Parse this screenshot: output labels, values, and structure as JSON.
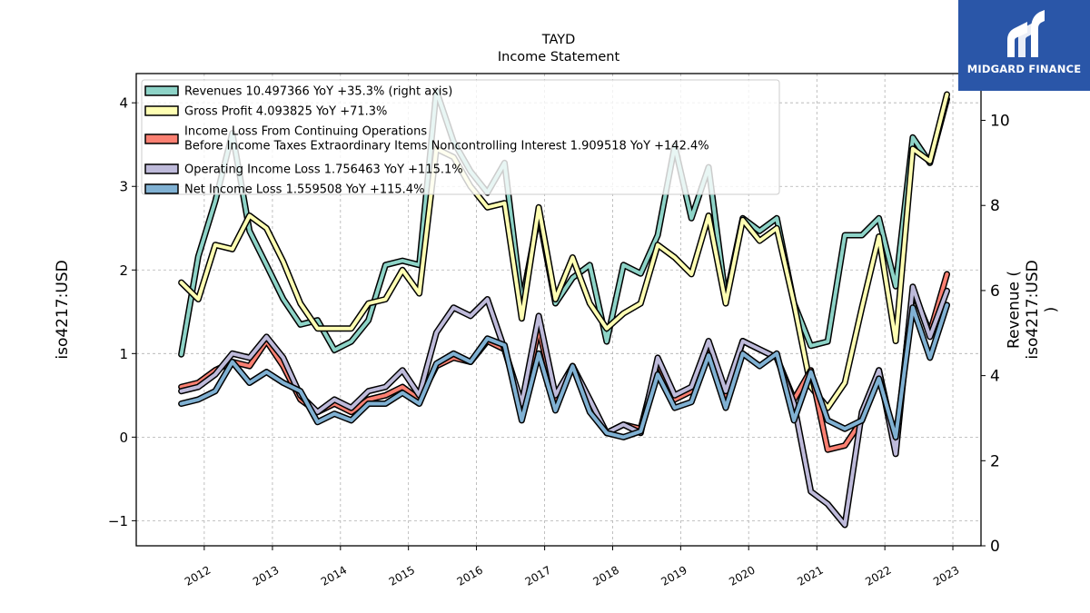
{
  "brand": {
    "name": "MIDGARD FINANCE",
    "bg_color": "#2a56a8"
  },
  "chart_data": {
    "type": "line",
    "title": "TAYD",
    "subtitle": "Income Statement",
    "ylabel": "iso4217:USD",
    "ylabel_right": "Revenue (\niso4217:USD\n)",
    "ylim": [
      -1.3,
      4.35
    ],
    "ylim_right": [
      0,
      11.1
    ],
    "yticks": [
      -1,
      0,
      1,
      2,
      3,
      4
    ],
    "yticks_right": [
      0,
      2,
      4,
      6,
      8,
      10
    ],
    "xlim": [
      "2011-01-01",
      "2023-06-01"
    ],
    "xtick_labels": [
      "2012",
      "2013",
      "2014",
      "2015",
      "2016",
      "2017",
      "2018",
      "2019",
      "2020",
      "2021",
      "2022",
      "2023"
    ],
    "grid": true,
    "legend_position": "top-left",
    "dates": [
      "2011-08-31",
      "2011-11-30",
      "2012-02-29",
      "2012-05-31",
      "2012-08-31",
      "2012-11-30",
      "2013-02-28",
      "2013-05-31",
      "2013-08-31",
      "2013-11-30",
      "2014-02-28",
      "2014-05-31",
      "2014-08-31",
      "2014-11-30",
      "2015-02-28",
      "2015-05-31",
      "2015-08-31",
      "2015-11-30",
      "2016-02-29",
      "2016-05-31",
      "2016-08-31",
      "2016-11-30",
      "2017-02-28",
      "2017-05-31",
      "2017-08-31",
      "2017-11-30",
      "2018-02-28",
      "2018-05-31",
      "2018-08-31",
      "2018-11-30",
      "2019-02-28",
      "2019-05-31",
      "2019-08-31",
      "2019-11-30",
      "2020-02-29",
      "2020-05-31",
      "2020-08-31",
      "2020-11-30",
      "2021-02-28",
      "2021-05-31",
      "2021-08-31",
      "2021-11-30",
      "2022-02-28",
      "2022-05-31",
      "2022-08-31",
      "2022-11-30"
    ],
    "series": [
      {
        "name": "Revenues  10.497366 YoY +35.3% (right axis)",
        "axis": "right",
        "color": "#8dd3c7",
        "values": [
          4.5,
          6.8,
          8.1,
          9.7,
          7.4,
          6.6,
          5.8,
          5.2,
          5.3,
          4.6,
          4.8,
          5.3,
          6.6,
          6.7,
          6.6,
          10.7,
          9.5,
          8.8,
          8.3,
          9.0,
          5.7,
          7.8,
          5.7,
          6.3,
          6.6,
          4.8,
          6.6,
          6.4,
          7.3,
          9.4,
          7.7,
          8.9,
          5.8,
          7.7,
          7.4,
          7.7,
          5.7,
          4.7,
          4.8,
          7.3,
          7.3,
          7.7,
          6.1,
          9.6,
          9.0,
          10.5
        ]
      },
      {
        "name": "Gross Profit  4.093825 YoY +71.3%",
        "axis": "left",
        "color": "#ffffb3",
        "values": [
          1.85,
          1.65,
          2.3,
          2.25,
          2.65,
          2.5,
          2.1,
          1.6,
          1.3,
          1.3,
          1.3,
          1.6,
          1.65,
          2.0,
          1.72,
          3.45,
          3.35,
          3.0,
          2.75,
          2.8,
          1.42,
          2.75,
          1.65,
          2.15,
          1.6,
          1.3,
          1.48,
          1.6,
          2.3,
          2.15,
          1.95,
          2.65,
          1.6,
          2.6,
          2.35,
          2.5,
          1.6,
          0.6,
          0.35,
          0.65,
          1.55,
          2.4,
          1.15,
          3.45,
          3.3,
          4.1
        ]
      },
      {
        "name": "Income Loss From Continuing Operations\nBefore Income Taxes Extraordinary Items Noncontrolling Interest  1.909518 YoY +142.4%",
        "axis": "left",
        "color": "#fb8072",
        "values": [
          0.6,
          0.65,
          0.8,
          0.9,
          0.85,
          1.15,
          0.85,
          0.45,
          0.3,
          0.4,
          0.3,
          0.45,
          0.5,
          0.6,
          0.45,
          0.85,
          0.95,
          0.9,
          1.15,
          1.05,
          0.35,
          1.3,
          0.45,
          0.85,
          0.4,
          0.05,
          0.15,
          0.1,
          0.9,
          0.45,
          0.55,
          1.1,
          0.45,
          1.15,
          1.05,
          0.95,
          0.45,
          0.8,
          -0.15,
          -0.1,
          0.2,
          0.8,
          -0.1,
          1.75,
          1.25,
          1.95
        ]
      },
      {
        "name": "Operating Income Loss  1.756463 YoY +115.1%",
        "axis": "left",
        "color": "#bebada",
        "values": [
          0.55,
          0.6,
          0.75,
          1.0,
          0.95,
          1.2,
          0.95,
          0.5,
          0.3,
          0.45,
          0.35,
          0.55,
          0.6,
          0.8,
          0.5,
          1.25,
          1.55,
          1.45,
          1.65,
          1.05,
          0.4,
          1.45,
          0.5,
          0.85,
          0.45,
          0.05,
          0.15,
          0.05,
          0.95,
          0.5,
          0.6,
          1.15,
          0.55,
          1.15,
          1.05,
          0.95,
          0.4,
          -0.65,
          -0.8,
          -1.05,
          0.3,
          0.8,
          -0.2,
          1.8,
          1.2,
          1.75
        ]
      },
      {
        "name": "Net Income Loss  1.559508 YoY +115.4%",
        "axis": "left",
        "color": "#80b1d3",
        "values": [
          0.4,
          0.45,
          0.55,
          0.9,
          0.65,
          0.78,
          0.65,
          0.55,
          0.18,
          0.28,
          0.2,
          0.4,
          0.4,
          0.53,
          0.4,
          0.88,
          1.0,
          0.9,
          1.18,
          1.1,
          0.2,
          1.0,
          0.32,
          0.85,
          0.3,
          0.05,
          0.0,
          0.07,
          0.75,
          0.35,
          0.42,
          0.98,
          0.35,
          1.0,
          0.85,
          1.0,
          0.2,
          0.78,
          0.2,
          0.1,
          0.2,
          0.7,
          0.0,
          1.55,
          0.95,
          1.58
        ]
      }
    ]
  }
}
